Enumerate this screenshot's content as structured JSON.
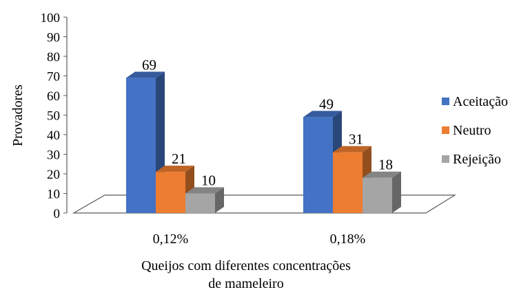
{
  "chart_data": {
    "type": "bar",
    "categories": [
      "0,12%",
      "0,18%"
    ],
    "series": [
      {
        "name": "Aceitação",
        "values": [
          69,
          49
        ],
        "color": "#4472C4"
      },
      {
        "name": "Neutro",
        "values": [
          21,
          31
        ],
        "color": "#ED7D31"
      },
      {
        "name": "Rejeição",
        "values": [
          10,
          18
        ],
        "color": "#A5A5A5"
      }
    ],
    "title": "",
    "xlabel": "Queijos com diferentes concentrações de mameleiro",
    "xlabel_lines": [
      "Queijos com diferentes concentrações",
      "de mameleiro"
    ],
    "ylabel": "Provadores",
    "ylim": [
      0,
      100
    ],
    "yticks": [
      0,
      10,
      20,
      30,
      40,
      50,
      60,
      70,
      80,
      90,
      100
    ],
    "grid": false,
    "legend": "right",
    "style": "3d-clustered-column"
  }
}
